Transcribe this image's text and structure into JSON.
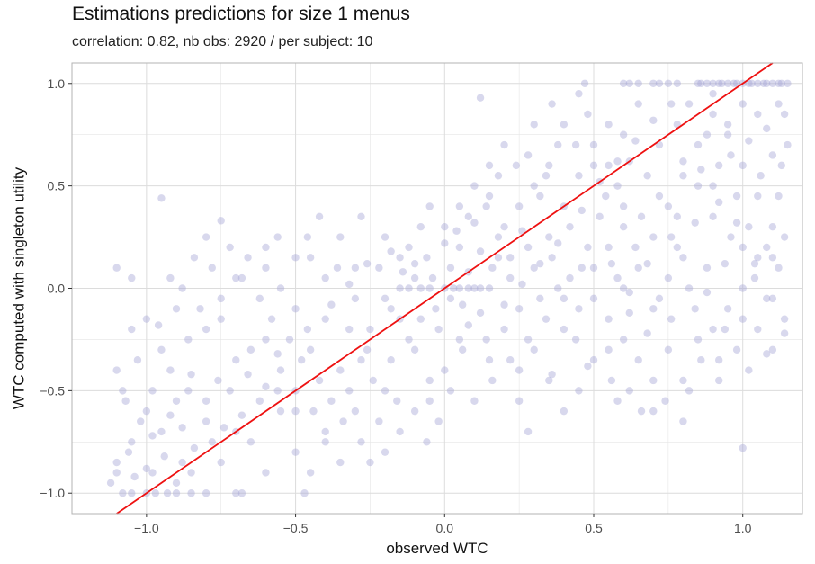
{
  "chart_data": {
    "type": "scatter",
    "title": "Estimations predictions for size 1 menus",
    "subtitle": "correlation: 0.82, nb obs: 2920 / per subject: 10",
    "xlabel": "observed WTC",
    "ylabel": "WTC computed with singleton utility",
    "xlim": [
      -1.25,
      1.2
    ],
    "ylim": [
      -1.1,
      1.1
    ],
    "x_ticks": [
      -1.0,
      -0.5,
      0.0,
      0.5,
      1.0
    ],
    "x_tick_labels": [
      "−1.0",
      "−0.5",
      "0.0",
      "0.5",
      "1.0"
    ],
    "y_ticks": [
      -1.0,
      -0.5,
      0.0,
      0.5,
      1.0
    ],
    "y_tick_labels": [
      "−1.0",
      "−0.5",
      "0.0",
      "0.5",
      "1.0"
    ],
    "grid": true,
    "n_points": 2920,
    "correlation": 0.82,
    "colors": {
      "points": "#a9a9d6",
      "line": "#ee1111",
      "grid": "#e5e5e5",
      "panel_border": "#b3b3b3"
    },
    "points": [
      [
        -1.08,
        -1.0
      ],
      [
        -1.05,
        -1.0
      ],
      [
        -1.0,
        -1.0
      ],
      [
        -0.97,
        -1.0
      ],
      [
        -0.93,
        -1.0
      ],
      [
        -0.9,
        -1.0
      ],
      [
        -0.85,
        -1.0
      ],
      [
        -0.8,
        -1.0
      ],
      [
        -0.7,
        -1.0
      ],
      [
        -0.68,
        -1.0
      ],
      [
        -0.47,
        -1.0
      ],
      [
        -0.9,
        -0.95
      ],
      [
        -0.98,
        -0.9
      ],
      [
        -0.88,
        -0.85
      ],
      [
        -1.1,
        -0.85
      ],
      [
        -1.05,
        -0.75
      ],
      [
        -0.95,
        -0.7
      ],
      [
        -0.8,
        -0.65
      ],
      [
        -1.0,
        -0.6
      ],
      [
        -1.07,
        -0.55
      ],
      [
        -0.9,
        -0.55
      ],
      [
        -0.72,
        -0.5
      ],
      [
        -0.6,
        -0.48
      ],
      [
        -1.1,
        -0.4
      ],
      [
        -0.85,
        -0.42
      ],
      [
        -0.7,
        -0.35
      ],
      [
        -0.95,
        -0.3
      ],
      [
        -1.05,
        -0.2
      ],
      [
        -0.8,
        -0.2
      ],
      [
        -0.6,
        -0.25
      ],
      [
        -1.0,
        -0.15
      ],
      [
        -0.9,
        -0.1
      ],
      [
        -0.75,
        -0.05
      ],
      [
        -1.1,
        0.1
      ],
      [
        -1.05,
        0.05
      ],
      [
        -0.88,
        0.0
      ],
      [
        -0.7,
        0.05
      ],
      [
        -0.6,
        0.1
      ],
      [
        -0.5,
        0.15
      ],
      [
        -0.95,
        0.44
      ],
      [
        -0.75,
        0.33
      ],
      [
        -0.6,
        0.2
      ],
      [
        -0.45,
        0.15
      ],
      [
        -0.4,
        0.05
      ],
      [
        -0.5,
        -0.1
      ],
      [
        -0.45,
        -0.3
      ],
      [
        -0.35,
        -0.4
      ],
      [
        -0.5,
        -0.6
      ],
      [
        -0.4,
        -0.7
      ],
      [
        -0.35,
        -0.85
      ],
      [
        -0.45,
        -0.9
      ],
      [
        -0.25,
        -0.85
      ],
      [
        -0.3,
        -0.6
      ],
      [
        -0.2,
        -0.5
      ],
      [
        -0.28,
        -0.35
      ],
      [
        -0.25,
        -0.2
      ],
      [
        -0.2,
        -0.05
      ],
      [
        -0.3,
        0.1
      ],
      [
        -0.35,
        0.25
      ],
      [
        -0.28,
        0.35
      ],
      [
        -0.2,
        0.25
      ],
      [
        -0.15,
        0.15
      ],
      [
        -0.1,
        0.05
      ],
      [
        -0.15,
        -0.15
      ],
      [
        -0.1,
        -0.3
      ],
      [
        -0.05,
        -0.45
      ],
      [
        -0.1,
        -0.6
      ],
      [
        -0.15,
        -0.7
      ],
      [
        -0.2,
        -0.8
      ],
      [
        -0.05,
        -0.55
      ],
      [
        0.0,
        -0.4
      ],
      [
        0.05,
        -0.25
      ],
      [
        -0.03,
        -0.1
      ],
      [
        0.0,
        0.0
      ],
      [
        0.03,
        0.0
      ],
      [
        0.05,
        0.0
      ],
      [
        0.08,
        0.0
      ],
      [
        0.1,
        0.0
      ],
      [
        0.12,
        0.0
      ],
      [
        0.15,
        0.0
      ],
      [
        -0.05,
        0.0
      ],
      [
        -0.08,
        0.0
      ],
      [
        -0.12,
        0.0
      ],
      [
        -0.15,
        0.0
      ],
      [
        0.02,
        0.1
      ],
      [
        0.05,
        0.2
      ],
      [
        0.0,
        0.3
      ],
      [
        -0.05,
        0.4
      ],
      [
        0.08,
        0.35
      ],
      [
        0.1,
        0.5
      ],
      [
        0.12,
        0.93
      ],
      [
        0.15,
        0.45
      ],
      [
        0.2,
        0.3
      ],
      [
        0.18,
        0.15
      ],
      [
        0.22,
        0.05
      ],
      [
        0.25,
        -0.1
      ],
      [
        0.2,
        -0.2
      ],
      [
        0.15,
        -0.35
      ],
      [
        0.25,
        -0.4
      ],
      [
        0.3,
        -0.3
      ],
      [
        0.35,
        -0.45
      ],
      [
        0.4,
        -0.2
      ],
      [
        0.45,
        -0.1
      ],
      [
        0.38,
        0.0
      ],
      [
        0.3,
        0.1
      ],
      [
        0.35,
        0.25
      ],
      [
        0.4,
        0.4
      ],
      [
        0.45,
        0.55
      ],
      [
        0.35,
        0.6
      ],
      [
        0.3,
        0.5
      ],
      [
        0.25,
        0.4
      ],
      [
        0.5,
        0.7
      ],
      [
        0.55,
        0.8
      ],
      [
        0.48,
        0.85
      ],
      [
        0.45,
        0.95
      ],
      [
        0.47,
        1.0
      ],
      [
        0.6,
        1.0
      ],
      [
        0.65,
        0.9
      ],
      [
        0.6,
        0.75
      ],
      [
        0.55,
        0.6
      ],
      [
        0.6,
        0.4
      ],
      [
        0.55,
        0.2
      ],
      [
        0.5,
        0.1
      ],
      [
        0.5,
        -0.05
      ],
      [
        0.55,
        -0.15
      ],
      [
        0.6,
        -0.25
      ],
      [
        0.65,
        -0.35
      ],
      [
        0.7,
        -0.45
      ],
      [
        0.75,
        -0.3
      ],
      [
        0.7,
        -0.1
      ],
      [
        0.75,
        0.05
      ],
      [
        0.8,
        0.15
      ],
      [
        0.7,
        0.25
      ],
      [
        0.75,
        0.4
      ],
      [
        0.8,
        0.55
      ],
      [
        0.85,
        0.7
      ],
      [
        0.9,
        0.85
      ],
      [
        0.95,
        0.75
      ],
      [
        1.0,
        0.6
      ],
      [
        1.05,
        0.45
      ],
      [
        1.1,
        0.3
      ],
      [
        1.05,
        0.15
      ],
      [
        1.0,
        0.0
      ],
      [
        0.95,
        -0.1
      ],
      [
        1.05,
        -0.2
      ],
      [
        1.1,
        -0.3
      ],
      [
        0.92,
        -0.35
      ],
      [
        0.8,
        -0.65
      ],
      [
        1.0,
        -0.78
      ],
      [
        0.85,
        -0.25
      ],
      [
        1.08,
        -0.05
      ],
      [
        1.12,
        0.1
      ],
      [
        1.13,
        0.6
      ],
      [
        1.12,
        0.9
      ],
      [
        0.62,
        1.0
      ],
      [
        0.65,
        1.0
      ],
      [
        0.7,
        1.0
      ],
      [
        0.72,
        1.0
      ],
      [
        0.75,
        1.0
      ],
      [
        0.78,
        1.0
      ],
      [
        0.85,
        1.0
      ],
      [
        0.86,
        1.0
      ],
      [
        0.88,
        1.0
      ],
      [
        0.9,
        1.0
      ],
      [
        0.92,
        1.0
      ],
      [
        0.93,
        1.0
      ],
      [
        0.95,
        1.0
      ],
      [
        0.97,
        1.0
      ],
      [
        0.98,
        1.0
      ],
      [
        1.0,
        1.0
      ],
      [
        1.02,
        1.0
      ],
      [
        1.03,
        1.0
      ],
      [
        1.05,
        1.0
      ],
      [
        1.07,
        1.0
      ],
      [
        1.08,
        1.0
      ],
      [
        1.1,
        1.0
      ],
      [
        1.12,
        1.0
      ],
      [
        1.13,
        1.0
      ],
      [
        1.15,
        1.0
      ],
      [
        0.9,
        0.95
      ],
      [
        1.0,
        0.9
      ],
      [
        1.05,
        0.85
      ],
      [
        0.95,
        0.8
      ],
      [
        0.85,
        0.5
      ],
      [
        0.9,
        0.35
      ],
      [
        0.78,
        0.2
      ],
      [
        0.65,
        0.1
      ],
      [
        0.6,
        0.0
      ],
      [
        0.55,
        -0.3
      ],
      [
        0.45,
        -0.5
      ],
      [
        0.25,
        -0.55
      ],
      [
        0.28,
        -0.7
      ],
      [
        0.4,
        -0.6
      ],
      [
        -0.55,
        -0.6
      ],
      [
        -0.65,
        -0.75
      ],
      [
        -0.75,
        -0.85
      ],
      [
        -0.85,
        -0.9
      ],
      [
        -0.6,
        -0.9
      ],
      [
        -0.5,
        -0.8
      ],
      [
        -0.7,
        -0.7
      ],
      [
        -0.8,
        -0.55
      ],
      [
        -0.55,
        -0.4
      ],
      [
        -0.65,
        -0.3
      ],
      [
        -0.75,
        -0.15
      ],
      [
        -0.55,
        0.0
      ],
      [
        -0.4,
        -0.15
      ],
      [
        -0.3,
        -0.05
      ],
      [
        -0.22,
        0.1
      ],
      [
        -0.12,
        0.2
      ],
      [
        -0.08,
        0.3
      ],
      [
        0.05,
        0.4
      ],
      [
        0.15,
        0.6
      ],
      [
        0.2,
        0.7
      ],
      [
        0.3,
        0.8
      ],
      [
        0.38,
        0.7
      ],
      [
        0.42,
        0.3
      ],
      [
        0.48,
        0.2
      ],
      [
        0.52,
        0.35
      ],
      [
        0.58,
        0.5
      ],
      [
        0.62,
        0.62
      ],
      [
        0.68,
        0.55
      ],
      [
        0.72,
        0.7
      ],
      [
        0.78,
        0.8
      ],
      [
        0.82,
        0.9
      ],
      [
        0.88,
        0.75
      ],
      [
        0.92,
        0.6
      ],
      [
        0.98,
        0.45
      ],
      [
        1.02,
        0.3
      ],
      [
        1.08,
        0.2
      ],
      [
        1.1,
        0.65
      ],
      [
        1.15,
        0.7
      ],
      [
        1.12,
        0.45
      ],
      [
        1.06,
        0.55
      ],
      [
        0.96,
        0.25
      ],
      [
        0.88,
        0.1
      ],
      [
        0.82,
        0.0
      ],
      [
        0.76,
        -0.15
      ],
      [
        0.68,
        -0.22
      ],
      [
        0.62,
        -0.12
      ],
      [
        0.58,
        0.05
      ],
      [
        0.42,
        0.05
      ],
      [
        0.32,
        -0.05
      ],
      [
        0.28,
        0.2
      ],
      [
        0.22,
        0.15
      ],
      [
        0.18,
        0.25
      ],
      [
        0.12,
        0.18
      ],
      [
        0.08,
        0.08
      ],
      [
        0.06,
        -0.08
      ],
      [
        -0.02,
        -0.2
      ],
      [
        -0.08,
        -0.15
      ],
      [
        -0.12,
        -0.25
      ],
      [
        -0.18,
        -0.35
      ],
      [
        -0.24,
        -0.45
      ],
      [
        -0.32,
        -0.5
      ],
      [
        -0.38,
        -0.55
      ],
      [
        -0.42,
        -0.45
      ],
      [
        -0.48,
        -0.35
      ],
      [
        -0.52,
        -0.25
      ],
      [
        -0.58,
        -0.15
      ],
      [
        -0.62,
        -0.05
      ],
      [
        -0.68,
        0.05
      ],
      [
        -0.78,
        0.1
      ],
      [
        -0.82,
        -0.1
      ],
      [
        -0.86,
        -0.25
      ],
      [
        -0.92,
        -0.4
      ],
      [
        -0.98,
        -0.5
      ],
      [
        -1.02,
        -0.65
      ],
      [
        -1.06,
        -0.8
      ],
      [
        -1.1,
        -0.9
      ],
      [
        -1.12,
        -0.95
      ],
      [
        -1.08,
        -0.5
      ],
      [
        -1.03,
        -0.35
      ],
      [
        -0.96,
        -0.18
      ],
      [
        -0.92,
        0.05
      ],
      [
        -0.84,
        0.15
      ],
      [
        -0.8,
        0.25
      ],
      [
        -0.72,
        0.2
      ],
      [
        -0.66,
        0.15
      ],
      [
        -0.56,
        0.25
      ],
      [
        -0.46,
        0.25
      ],
      [
        -0.42,
        0.35
      ],
      [
        -0.36,
        0.1
      ],
      [
        -0.32,
        -0.2
      ],
      [
        -0.26,
        -0.3
      ],
      [
        -0.18,
        -0.1
      ],
      [
        -0.14,
        0.08
      ],
      [
        -0.06,
        0.15
      ],
      [
        0.0,
        0.22
      ],
      [
        0.04,
        0.28
      ],
      [
        0.1,
        0.32
      ],
      [
        0.14,
        0.4
      ],
      [
        0.18,
        0.55
      ],
      [
        0.24,
        0.6
      ],
      [
        0.28,
        0.65
      ],
      [
        0.32,
        0.45
      ],
      [
        0.36,
        0.15
      ],
      [
        0.44,
        -0.25
      ],
      [
        0.5,
        -0.35
      ],
      [
        0.56,
        -0.45
      ],
      [
        0.62,
        -0.5
      ],
      [
        0.66,
        -0.6
      ],
      [
        0.74,
        -0.55
      ],
      [
        0.8,
        -0.45
      ],
      [
        0.86,
        -0.35
      ],
      [
        0.94,
        -0.2
      ],
      [
        1.0,
        -0.15
      ],
      [
        1.04,
        0.05
      ],
      [
        1.1,
        0.15
      ],
      [
        1.14,
        0.25
      ],
      [
        1.14,
        -0.22
      ],
      [
        1.08,
        -0.32
      ],
      [
        0.98,
        -0.3
      ],
      [
        0.9,
        -0.2
      ],
      [
        0.84,
        -0.1
      ],
      [
        0.78,
        0.35
      ],
      [
        0.72,
        0.45
      ],
      [
        0.66,
        0.35
      ],
      [
        0.6,
        0.3
      ],
      [
        0.54,
        0.45
      ],
      [
        0.5,
        0.6
      ],
      [
        0.44,
        0.7
      ],
      [
        0.4,
        0.8
      ],
      [
        0.36,
        0.9
      ],
      [
        0.34,
        0.55
      ],
      [
        0.26,
        0.28
      ],
      [
        0.16,
        0.1
      ],
      [
        0.12,
        -0.12
      ],
      [
        0.06,
        -0.3
      ],
      [
        0.02,
        -0.5
      ],
      [
        -0.02,
        -0.65
      ],
      [
        -0.06,
        -0.75
      ],
      [
        -0.16,
        -0.55
      ],
      [
        -0.22,
        -0.65
      ],
      [
        -0.28,
        -0.75
      ],
      [
        -0.34,
        -0.65
      ],
      [
        -0.4,
        -0.75
      ],
      [
        -0.44,
        -0.6
      ],
      [
        -0.5,
        -0.5
      ],
      [
        -0.56,
        -0.5
      ],
      [
        -0.62,
        -0.55
      ],
      [
        -0.68,
        -0.62
      ],
      [
        -0.74,
        -0.68
      ],
      [
        -0.78,
        -0.75
      ],
      [
        -0.84,
        -0.78
      ],
      [
        -0.88,
        -0.68
      ],
      [
        -0.94,
        -0.82
      ],
      [
        -1.0,
        -0.88
      ],
      [
        -1.04,
        -0.92
      ],
      [
        -0.98,
        -0.72
      ],
      [
        -0.92,
        -0.62
      ],
      [
        -0.86,
        -0.5
      ],
      [
        -0.76,
        -0.45
      ],
      [
        -0.66,
        -0.42
      ],
      [
        -0.56,
        -0.32
      ],
      [
        -0.46,
        -0.2
      ],
      [
        -0.38,
        -0.08
      ],
      [
        -0.32,
        0.02
      ],
      [
        -0.26,
        0.12
      ],
      [
        -0.18,
        0.18
      ],
      [
        -0.1,
        0.12
      ],
      [
        -0.04,
        0.05
      ],
      [
        0.02,
        -0.05
      ],
      [
        0.08,
        -0.18
      ],
      [
        0.14,
        -0.25
      ],
      [
        0.2,
        -0.08
      ],
      [
        0.26,
        0.02
      ],
      [
        0.32,
        0.12
      ],
      [
        0.38,
        0.22
      ],
      [
        0.46,
        0.38
      ],
      [
        0.52,
        0.52
      ],
      [
        0.58,
        0.62
      ],
      [
        0.64,
        0.72
      ],
      [
        0.7,
        0.82
      ],
      [
        0.76,
        0.9
      ],
      [
        0.8,
        0.62
      ],
      [
        0.86,
        0.58
      ],
      [
        0.9,
        0.5
      ],
      [
        0.96,
        0.65
      ],
      [
        1.02,
        0.72
      ],
      [
        1.08,
        0.78
      ],
      [
        1.14,
        0.85
      ],
      [
        1.0,
        0.2
      ],
      [
        0.94,
        0.12
      ],
      [
        0.88,
        -0.02
      ],
      [
        0.72,
        -0.05
      ],
      [
        0.64,
        0.2
      ],
      [
        0.56,
        0.12
      ],
      [
        0.46,
        0.1
      ],
      [
        0.4,
        -0.05
      ],
      [
        0.34,
        -0.15
      ],
      [
        0.28,
        -0.25
      ],
      [
        0.22,
        -0.35
      ],
      [
        0.16,
        -0.45
      ],
      [
        0.1,
        -0.55
      ],
      [
        0.36,
        -0.42
      ],
      [
        0.48,
        -0.38
      ],
      [
        0.58,
        -0.55
      ],
      [
        0.7,
        -0.6
      ],
      [
        0.82,
        -0.5
      ],
      [
        0.92,
        -0.45
      ],
      [
        1.02,
        -0.4
      ],
      [
        1.14,
        -0.15
      ],
      [
        1.1,
        -0.05
      ],
      [
        1.04,
        0.12
      ],
      [
        0.98,
        0.32
      ],
      [
        0.92,
        0.42
      ],
      [
        0.84,
        0.32
      ],
      [
        0.76,
        0.25
      ],
      [
        0.68,
        0.12
      ],
      [
        0.62,
        -0.02
      ]
    ]
  }
}
